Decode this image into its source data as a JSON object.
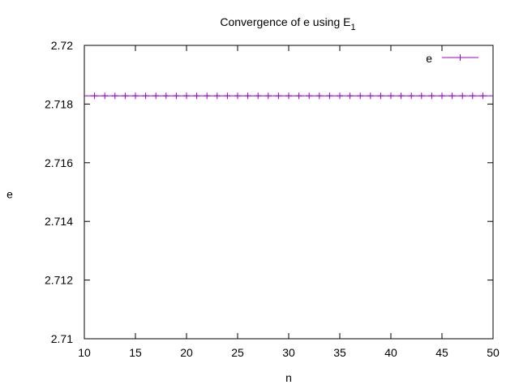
{
  "chart_data": {
    "type": "line",
    "title": "Convergence of e using E",
    "title_subscript": "1",
    "xlabel": "n",
    "ylabel": "e",
    "xlim": [
      10,
      50
    ],
    "ylim": [
      2.71,
      2.72
    ],
    "x_ticks": [
      "10",
      "15",
      "20",
      "25",
      "30",
      "35",
      "40",
      "45",
      "50"
    ],
    "y_ticks": [
      "2.71",
      "2.712",
      "2.714",
      "2.716",
      "2.718",
      "2.72"
    ],
    "legend_position": "top-right",
    "grid": false,
    "series": [
      {
        "name": "e",
        "color": "#9400d3",
        "marker": "plus",
        "x": [
          11,
          12,
          13,
          14,
          15,
          16,
          17,
          18,
          19,
          20,
          21,
          22,
          23,
          24,
          25,
          26,
          27,
          28,
          29,
          30,
          31,
          32,
          33,
          34,
          35,
          36,
          37,
          38,
          39,
          40,
          41,
          42,
          43,
          44,
          45,
          46,
          47,
          48,
          49
        ],
        "values": [
          2.71828,
          2.71828,
          2.71828,
          2.71828,
          2.71828,
          2.71828,
          2.71828,
          2.71828,
          2.71828,
          2.71828,
          2.71828,
          2.71828,
          2.71828,
          2.71828,
          2.71828,
          2.71828,
          2.71828,
          2.71828,
          2.71828,
          2.71828,
          2.71828,
          2.71828,
          2.71828,
          2.71828,
          2.71828,
          2.71828,
          2.71828,
          2.71828,
          2.71828,
          2.71828,
          2.71828,
          2.71828,
          2.71828,
          2.71828,
          2.71828,
          2.71828,
          2.71828,
          2.71828,
          2.71828
        ]
      }
    ]
  }
}
